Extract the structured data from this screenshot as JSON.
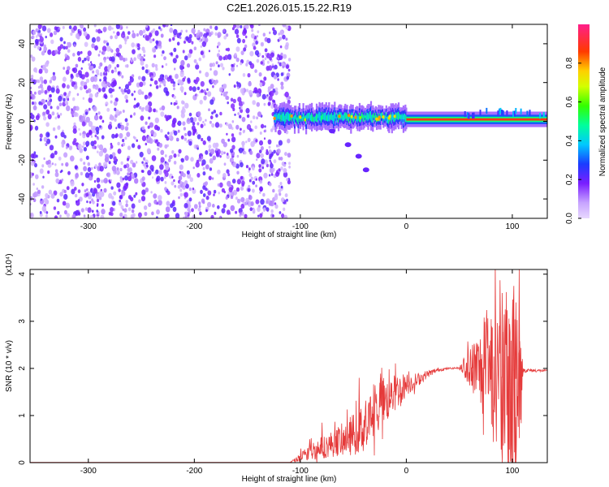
{
  "title": "C2E1.2026.015.15.22.R19",
  "chart_data": [
    {
      "type": "heatmap",
      "xlabel": "Height of straight line (km)",
      "ylabel": "Frequency (Hz)",
      "xlim": [
        -355,
        133
      ],
      "ylim": [
        -50,
        50
      ],
      "x_ticks": [
        -300,
        -200,
        -100,
        0,
        100
      ],
      "y_ticks": [
        -40,
        -20,
        0,
        20,
        40
      ],
      "colorbar": {
        "label": "Normalized spectral amplitude",
        "range": [
          0,
          1
        ],
        "ticks": [
          0,
          0.2,
          0.4,
          0.6,
          0.8
        ],
        "tick_labels": [
          "0.0",
          "0.2",
          "0.4",
          "0.6",
          "0.8"
        ]
      },
      "regions": [
        {
          "x_range": [
            -355,
            -125
          ],
          "y_range": [
            -50,
            50
          ],
          "amplitude": 0.15,
          "note": "scattered noise"
        },
        {
          "x_range": [
            -125,
            0
          ],
          "y_center": 2,
          "half_width": 4,
          "amplitude": 0.45
        },
        {
          "x_range": [
            0,
            133
          ],
          "y_center": 1,
          "half_width": 1.5,
          "amplitude": 0.95
        }
      ],
      "tail": [
        [
          -70,
          -5
        ],
        [
          -55,
          -12
        ],
        [
          -45,
          -18
        ],
        [
          -38,
          -25
        ]
      ]
    },
    {
      "type": "line",
      "xlabel": "Height of straight line (km)",
      "ylabel": "SNR (10 * v/v)",
      "y_multiplier": "(x10⁴)",
      "xlim": [
        -355,
        133
      ],
      "ylim": [
        0,
        4.1
      ],
      "x_ticks": [
        -300,
        -200,
        -100,
        0,
        100
      ],
      "y_ticks": [
        0,
        1,
        2,
        3,
        4
      ],
      "color": "#e53a3a",
      "envelope": {
        "x": [
          -355,
          -110,
          -100,
          -90,
          -75,
          -60,
          -50,
          -40,
          -30,
          -20,
          -10,
          0,
          10,
          20,
          30,
          40,
          50,
          60,
          70,
          80,
          90,
          100,
          105,
          110,
          133
        ],
        "mean": [
          0.0,
          0.0,
          0.1,
          0.25,
          0.35,
          0.5,
          0.6,
          0.75,
          1.05,
          1.3,
          1.5,
          1.65,
          1.75,
          1.88,
          1.97,
          2.0,
          2.01,
          2.02,
          1.95,
          2.0,
          1.8,
          1.6,
          1.9,
          1.96,
          1.95
        ],
        "spread": [
          0.0,
          0.0,
          0.1,
          0.2,
          0.25,
          0.35,
          0.45,
          0.55,
          0.6,
          0.5,
          0.4,
          0.25,
          0.15,
          0.08,
          0.04,
          0.02,
          0.02,
          0.5,
          0.9,
          1.3,
          1.8,
          2.1,
          2.3,
          0.05,
          0.02
        ]
      },
      "peaks": [
        [
          -100,
          0.3
        ],
        [
          -80,
          0.85
        ],
        [
          -45,
          1.8
        ],
        [
          -25,
          1.8
        ],
        [
          -15,
          1.7
        ],
        [
          62,
          2.5
        ],
        [
          80,
          2.9
        ],
        [
          90,
          3.6
        ],
        [
          103,
          3.4
        ],
        [
          106,
          4.1
        ]
      ]
    }
  ]
}
